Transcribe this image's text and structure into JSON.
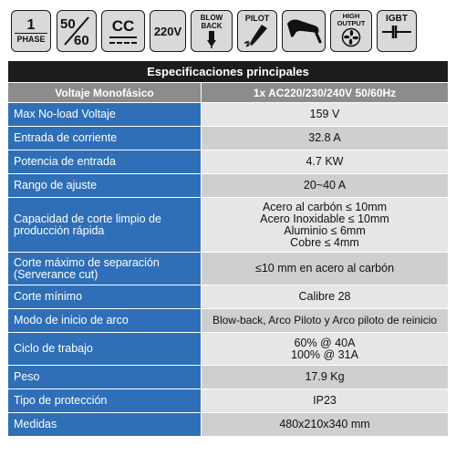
{
  "badges": {
    "phase_number": "1",
    "phase_label": "PHASE",
    "hz_top": "50",
    "hz_bottom": "60",
    "current_type": "CC",
    "voltage": "220V",
    "blow_back": [
      "BLOW",
      "BACK"
    ],
    "pilot": "PILOT",
    "high_output": [
      "HIGH",
      "OUTPUT"
    ],
    "igbt": "IGBT"
  },
  "table": {
    "title": "Especificaciones principales",
    "header_label": "Voltaje Monofásico",
    "header_value": "1x AC220/230/240V 50/60Hz",
    "rows": [
      {
        "label": [
          "Max No-load Voltaje"
        ],
        "value": [
          "159 V"
        ]
      },
      {
        "label": [
          "Entrada de corriente"
        ],
        "value": [
          "32.8 A"
        ]
      },
      {
        "label": [
          "Potencia de entrada"
        ],
        "value": [
          "4.7 KW"
        ]
      },
      {
        "label": [
          "Rango de ajuste"
        ],
        "value": [
          "20~40 A"
        ]
      },
      {
        "label": [
          "Capacidad de corte limpio de",
          "producción rápida"
        ],
        "value": [
          "Acero al carbón ≤ 10mm",
          "Acero Inoxidable ≤ 10mm",
          "Aluminio ≤ 6mm",
          "Cobre ≤ 4mm"
        ]
      },
      {
        "label": [
          "Corte máximo de separación",
          "(Serverance cut)"
        ],
        "value": [
          "≤10 mm en acero al carbón"
        ]
      },
      {
        "label": [
          "Corte mínimo"
        ],
        "value": [
          "Calibre 28"
        ]
      },
      {
        "label": [
          "Modo de inicio de arco"
        ],
        "value": [
          "Blow-back, Arco Piloto y Arco piloto de reinicio"
        ]
      },
      {
        "label": [
          "Ciclo de trabajo"
        ],
        "value": [
          "60% @ 40A",
          "100% @ 31A"
        ]
      },
      {
        "label": [
          "Peso"
        ],
        "value": [
          "17.9 Kg"
        ]
      },
      {
        "label": [
          "Tipo de protección"
        ],
        "value": [
          "IP23"
        ]
      },
      {
        "label": [
          "Medidas"
        ],
        "value": [
          "480x210x340 mm"
        ]
      }
    ]
  },
  "colors": {
    "label_blue": "#2f6fb7",
    "title_bar": "#1c1c1c",
    "header_gray": "#8c8c8c",
    "value_light": "#e6e6e6",
    "value_alt": "#cfcfcf"
  }
}
